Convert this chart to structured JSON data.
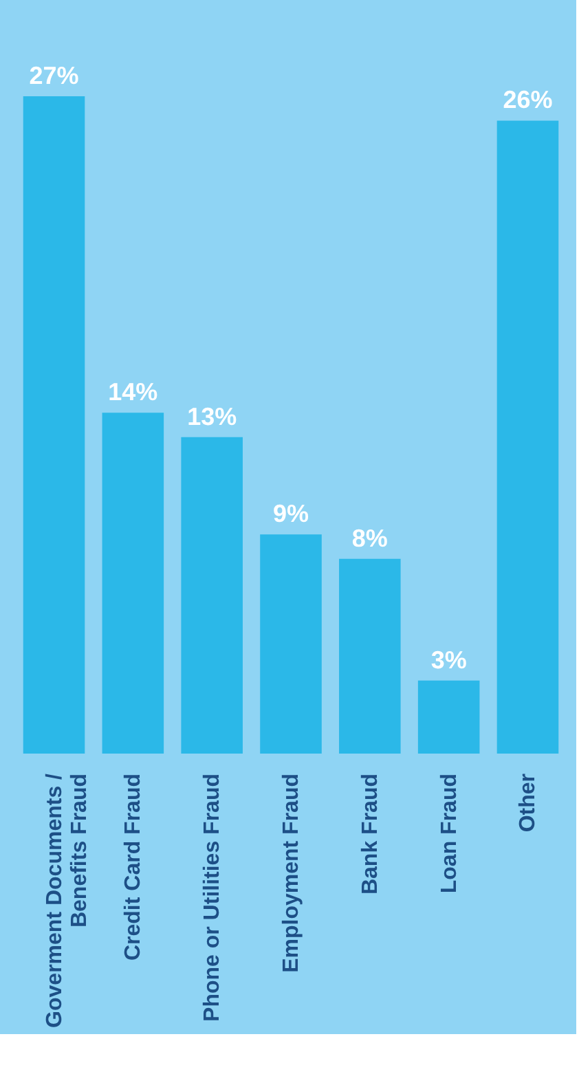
{
  "chart_data": {
    "type": "bar",
    "categories": [
      "Goverment Documents /\nBenefits Fraud",
      "Credit Card Fraud",
      "Phone or Utilities Fraud",
      "Employment Fraud",
      "Bank Fraud",
      "Loan Fraud",
      "Other"
    ],
    "values": [
      27,
      14,
      13,
      9,
      8,
      3,
      26
    ],
    "value_labels": [
      "27%",
      "14%",
      "13%",
      "9%",
      "8%",
      "3%",
      "26%"
    ],
    "color": "#2bb8e8",
    "grid": false
  }
}
